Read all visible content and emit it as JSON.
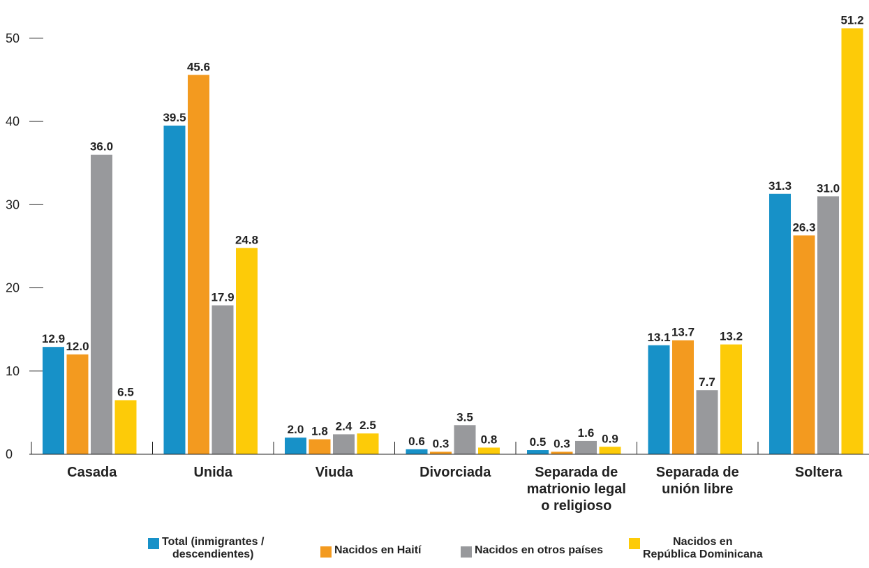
{
  "chart_data": {
    "type": "bar",
    "categories": [
      [
        "Casada"
      ],
      [
        "Unida"
      ],
      [
        "Viuda"
      ],
      [
        "Divorciada"
      ],
      [
        "Separada de",
        "matrionio legal",
        "o religioso"
      ],
      [
        "Separada de",
        "unión libre"
      ],
      [
        "Soltera"
      ]
    ],
    "series": [
      {
        "name": "Total (inmigrantes /\ndescendientes)",
        "color": "#1791c8",
        "values": [
          12.9,
          39.5,
          2.0,
          0.6,
          0.5,
          13.1,
          31.3
        ]
      },
      {
        "name": "Nacidos en Haití",
        "color": "#f39a1f",
        "values": [
          12.0,
          45.6,
          1.8,
          0.3,
          0.3,
          13.7,
          26.3
        ]
      },
      {
        "name": "Nacidos en otros países",
        "color": "#98999c",
        "values": [
          36.0,
          17.9,
          2.4,
          3.5,
          1.6,
          7.7,
          31.0
        ]
      },
      {
        "name": "Nacidos en\nRepública Dominicana",
        "color": "#fdcb08",
        "values": [
          6.5,
          24.8,
          2.5,
          0.8,
          0.9,
          13.2,
          51.2
        ]
      }
    ],
    "ylim": [
      0,
      52.5
    ],
    "yticks": [
      0,
      10,
      20,
      30,
      40,
      50
    ],
    "grid": false,
    "legend_position": "bottom"
  }
}
